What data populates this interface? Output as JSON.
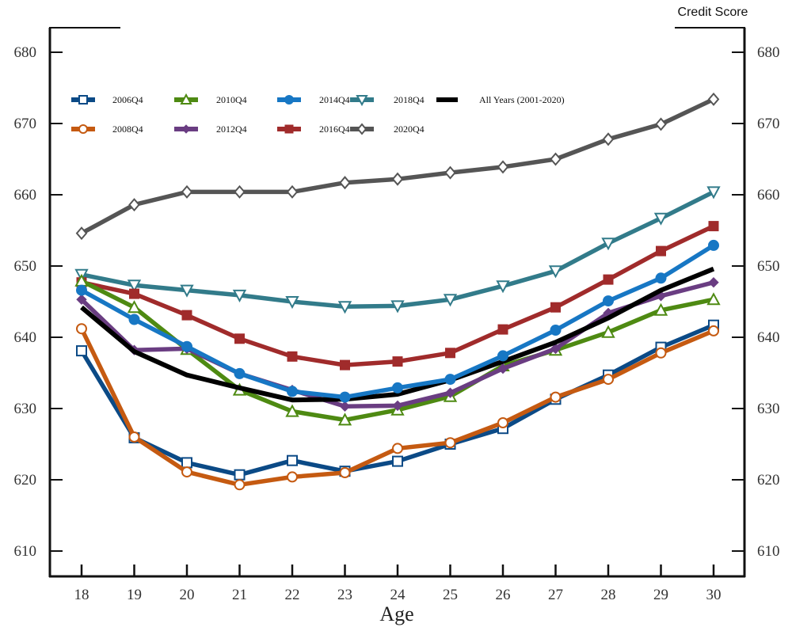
{
  "chart_data": {
    "type": "line",
    "title": "",
    "xlabel": "Age",
    "ylabel": "Credit Score",
    "x": [
      18,
      19,
      20,
      21,
      22,
      23,
      24,
      25,
      26,
      27,
      28,
      29,
      30
    ],
    "xlim": [
      17.4,
      31.6
    ],
    "ylim": [
      605.5,
      683.5
    ],
    "yticks": [
      610,
      620,
      630,
      640,
      650,
      660,
      670,
      680
    ],
    "grid": false,
    "legend_position": "top-left",
    "series": [
      {
        "name": "2006Q4",
        "color": "#0b4a86",
        "marker": "square-open",
        "values": [
          638.1,
          625.9,
          622.4,
          620.7,
          622.7,
          621.2,
          622.6,
          625.0,
          627.2,
          631.3,
          634.7,
          638.6,
          641.7
        ]
      },
      {
        "name": "2008Q4",
        "color": "#c55a11",
        "marker": "circle-open",
        "values": [
          641.2,
          626.0,
          621.1,
          619.3,
          620.4,
          621.0,
          624.4,
          625.2,
          628.0,
          631.6,
          634.1,
          637.8,
          640.9
        ]
      },
      {
        "name": "2010Q4",
        "color": "#4e8a12",
        "marker": "triangle-up-open",
        "values": [
          647.9,
          644.2,
          638.3,
          632.6,
          629.6,
          628.4,
          629.8,
          631.7,
          636.0,
          638.2,
          640.7,
          643.8,
          645.3
        ]
      },
      {
        "name": "2012Q4",
        "color": "#6a3d82",
        "marker": "diamond",
        "values": [
          645.3,
          638.2,
          638.4,
          634.9,
          632.6,
          630.3,
          630.4,
          632.2,
          635.6,
          638.4,
          643.4,
          645.8,
          647.7
        ]
      },
      {
        "name": "2014Q4",
        "color": "#1777c4",
        "marker": "circle",
        "values": [
          646.6,
          642.5,
          638.7,
          634.9,
          632.4,
          631.6,
          632.9,
          634.1,
          637.4,
          641.0,
          645.1,
          648.3,
          652.9
        ]
      },
      {
        "name": "2016Q4",
        "color": "#a02b2b",
        "marker": "square",
        "values": [
          647.7,
          646.1,
          643.1,
          639.8,
          637.3,
          636.1,
          636.6,
          637.8,
          641.1,
          644.2,
          648.1,
          652.1,
          655.6
        ]
      },
      {
        "name": "2018Q4",
        "color": "#327b8a",
        "marker": "triangle-down-open",
        "values": [
          648.8,
          647.3,
          646.6,
          645.9,
          645.0,
          644.3,
          644.4,
          645.3,
          647.2,
          649.3,
          653.2,
          656.7,
          660.4
        ]
      },
      {
        "name": "2020Q4",
        "color": "#555555",
        "marker": "diamond-open",
        "values": [
          654.6,
          658.6,
          660.4,
          660.4,
          660.4,
          661.7,
          662.2,
          663.1,
          663.9,
          665.0,
          667.8,
          669.9,
          673.4
        ]
      },
      {
        "name": "All Years (2001-2020)",
        "color": "#000000",
        "marker": "none",
        "values": [
          644.2,
          638.0,
          634.7,
          632.9,
          631.2,
          631.3,
          632.0,
          634.0,
          636.6,
          639.3,
          642.7,
          646.6,
          649.6
        ]
      }
    ],
    "legend_rows": [
      [
        "2006Q4",
        "2010Q4",
        "2014Q4",
        "2018Q4",
        "All Years (2001-2020)"
      ],
      [
        "2008Q4",
        "2012Q4",
        "2016Q4",
        "2020Q4"
      ]
    ]
  }
}
